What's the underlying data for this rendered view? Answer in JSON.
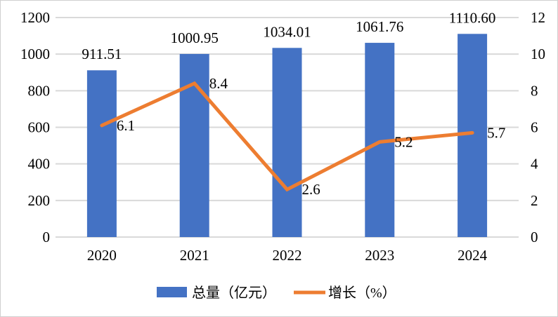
{
  "chart_data": {
    "type": "bar+line combo, dual y-axis",
    "categories": [
      "2020",
      "2021",
      "2022",
      "2023",
      "2024"
    ],
    "series": [
      {
        "name": "总量（亿元）",
        "type": "bar",
        "axis": "left",
        "color": "#4472C4",
        "values": [
          911.51,
          1000.95,
          1034.01,
          1061.76,
          1110.6
        ],
        "labels": [
          "911.51",
          "1000.95",
          "1034.01",
          "1061.76",
          "1110.60"
        ]
      },
      {
        "name": "增长（%）",
        "type": "line",
        "axis": "right",
        "color": "#ED7D31",
        "values": [
          6.1,
          8.4,
          2.6,
          5.2,
          5.7
        ],
        "labels": [
          "6.1",
          "8.4",
          "2.6",
          "5.2",
          "5.7"
        ]
      }
    ],
    "left_axis": {
      "min": 0,
      "max": 1200,
      "step": 200,
      "ticks": [
        "0",
        "200",
        "400",
        "600",
        "800",
        "1000",
        "1200"
      ]
    },
    "right_axis": {
      "min": 0,
      "max": 12,
      "step": 2,
      "ticks": [
        "0",
        "2",
        "4",
        "6",
        "8",
        "10",
        "12"
      ]
    },
    "grid": true,
    "legend_position": "bottom",
    "colors": {
      "gridline": "#D9D9D9",
      "text": "#000000",
      "background": "#FFFFFF"
    }
  }
}
